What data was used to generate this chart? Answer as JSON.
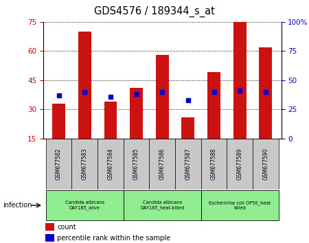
{
  "title": "GDS4576 / 189344_s_at",
  "samples": [
    "GSM677582",
    "GSM677583",
    "GSM677584",
    "GSM677585",
    "GSM677586",
    "GSM677587",
    "GSM677588",
    "GSM677589",
    "GSM677590"
  ],
  "count_values": [
    33,
    70,
    34,
    41,
    58,
    26,
    49,
    75,
    62
  ],
  "percentile_values": [
    37,
    40,
    36,
    38,
    40,
    33,
    40,
    41,
    40
  ],
  "ylim_left": [
    15,
    75
  ],
  "ylim_right": [
    0,
    100
  ],
  "yticks_left": [
    15,
    30,
    45,
    60,
    75
  ],
  "yticks_right": [
    0,
    25,
    50,
    75,
    100
  ],
  "bar_color": "#cc1111",
  "dot_color": "#0000cc",
  "bar_width": 0.5,
  "dot_size": 20,
  "groups": [
    {
      "label": "Candida albicans\nDAY185_alive",
      "start": 0,
      "end": 3
    },
    {
      "label": "Candida albicans\nDAY185_heat-killed",
      "start": 3,
      "end": 6
    },
    {
      "label": "Escherichia coli OP50_heat\nkilled",
      "start": 6,
      "end": 9
    }
  ],
  "group_color": "#90ee90",
  "infection_label": "infection",
  "legend_count": "count",
  "legend_percentile": "percentile rank within the sample",
  "tick_label_color_left": "#cc0000",
  "tick_label_color_right": "#0000cc",
  "bg_sample_area": "#c8c8c8"
}
